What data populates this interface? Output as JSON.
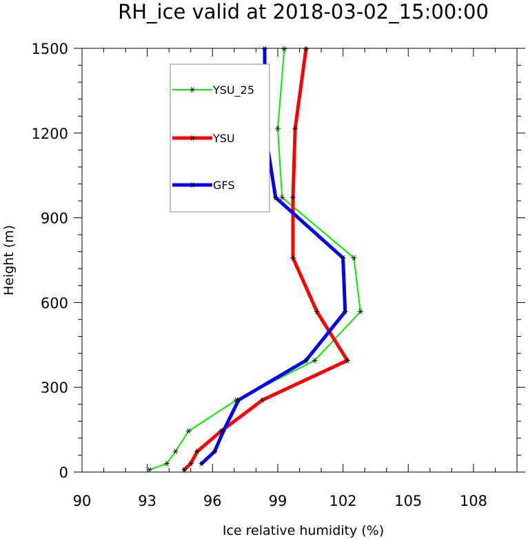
{
  "chart_data": {
    "type": "line",
    "title": "RH_ice valid at 2018-03-02_15:00:00",
    "xlabel": "Ice relative humidity (%)",
    "ylabel": "Height (m)",
    "xlim": [
      90,
      110
    ],
    "ylim": [
      0,
      1500
    ],
    "xticks": [
      90,
      93,
      96,
      99,
      102,
      105,
      108
    ],
    "yticks": [
      0,
      300,
      600,
      900,
      1200,
      1500
    ],
    "legend_position": "upper-left",
    "grid": false,
    "series": [
      {
        "name": "YSU_25",
        "color": "#00ee00",
        "line_width": 2,
        "points": [
          [
            93.1,
            8
          ],
          [
            93.9,
            30
          ],
          [
            94.3,
            73
          ],
          [
            94.9,
            145
          ],
          [
            97.1,
            255
          ],
          [
            100.7,
            395
          ],
          [
            102.8,
            568
          ],
          [
            102.5,
            758
          ],
          [
            99.2,
            972
          ],
          [
            99.0,
            1216
          ],
          [
            99.3,
            1498
          ]
        ]
      },
      {
        "name": "YSU",
        "color": "#ff0000",
        "line_width": 5,
        "points": [
          [
            94.7,
            8
          ],
          [
            95.0,
            30
          ],
          [
            95.3,
            73
          ],
          [
            96.4,
            145
          ],
          [
            98.3,
            255
          ],
          [
            102.2,
            395
          ],
          [
            100.8,
            568
          ],
          [
            99.7,
            758
          ],
          [
            99.7,
            972
          ],
          [
            99.8,
            1216
          ],
          [
            100.3,
            1498
          ]
        ]
      },
      {
        "name": "GFS",
        "color": "#0000ee",
        "line_width": 5,
        "points": [
          [
            95.5,
            30
          ],
          [
            96.1,
            73
          ],
          [
            96.5,
            145
          ],
          [
            97.2,
            255
          ],
          [
            100.3,
            395
          ],
          [
            102.1,
            568
          ],
          [
            102.0,
            758
          ],
          [
            98.9,
            972
          ],
          [
            98.4,
            1216
          ],
          [
            98.4,
            1498
          ]
        ]
      }
    ]
  }
}
